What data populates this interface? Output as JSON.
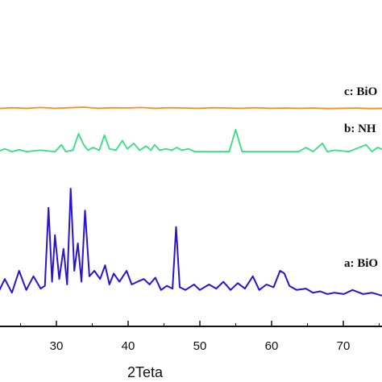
{
  "chart_data": {
    "type": "line",
    "xlabel": "2Teta",
    "ylabel": "",
    "xlim": [
      18,
      76
    ],
    "x_ticks": [
      "30",
      "40",
      "50",
      "60",
      "70"
    ],
    "grid": false,
    "series": [
      {
        "name": "a: BiO",
        "color": "#2a14d4",
        "baseline": 0,
        "x": [
          18,
          19,
          20,
          21,
          22,
          23,
          24,
          24.6,
          25.1,
          25.6,
          26,
          26.6,
          27.2,
          27.7,
          28.2,
          28.7,
          29.2,
          29.7,
          30.2,
          30.8,
          31.5,
          32.3,
          33,
          33.6,
          34.2,
          35,
          36,
          36.7,
          37.5,
          38.4,
          39.2,
          40,
          40.8,
          41.6,
          42.4,
          42.9,
          43.4,
          44.2,
          45.4,
          46.2,
          47.5,
          48.5,
          49.5,
          50.5,
          51.5,
          52.5,
          53.6,
          54.5,
          55.5,
          56.5,
          57.4,
          58,
          58.7,
          59.7,
          61,
          62,
          63,
          64,
          65,
          66.3,
          67.5,
          69,
          70.2,
          71.5,
          73,
          74.5,
          76
        ],
        "values": [
          0.15,
          0.7,
          0.2,
          1.0,
          0.3,
          0.8,
          0.35,
          0.45,
          3.3,
          0.6,
          2.3,
          0.7,
          1.8,
          0.5,
          4.0,
          1.0,
          2.0,
          0.6,
          3.2,
          0.8,
          1.0,
          0.7,
          1.2,
          0.5,
          0.9,
          0.6,
          1.0,
          0.5,
          0.6,
          0.7,
          0.5,
          0.75,
          0.3,
          0.45,
          0.35,
          2.6,
          0.4,
          0.3,
          0.5,
          0.3,
          0.5,
          0.35,
          0.6,
          0.3,
          0.55,
          0.35,
          0.8,
          0.3,
          0.5,
          0.4,
          1.0,
          0.9,
          0.45,
          0.3,
          0.35,
          0.2,
          0.25,
          0.15,
          0.2,
          0.15,
          0.3,
          0.15,
          0.2,
          0.1,
          0.15,
          0.1,
          0.15
        ]
      },
      {
        "name": "b: NH",
        "color": "#33e080",
        "baseline": 5.3,
        "x": [
          18,
          19,
          20,
          21,
          22,
          24,
          26,
          26.9,
          27.5,
          28.5,
          29.3,
          30,
          30.6,
          31.3,
          32.2,
          32.9,
          33.6,
          34.5,
          35.4,
          36.1,
          37,
          37.8,
          38.7,
          39.4,
          39.9,
          40.6,
          41.5,
          42.3,
          43,
          43.7,
          44.6,
          45.5,
          47,
          48.5,
          50.3,
          51.2,
          52.1,
          54,
          56,
          58,
          60,
          61,
          62,
          63.3,
          64,
          65,
          67,
          69.4,
          70.2,
          71,
          72.5,
          74,
          76
        ],
        "values": [
          0.05,
          0.15,
          0.05,
          0.12,
          0.05,
          0.1,
          0.05,
          0.3,
          0.05,
          0.1,
          0.7,
          0.3,
          0.1,
          0.2,
          0.1,
          0.65,
          0.15,
          0.1,
          0.45,
          0.15,
          0.35,
          0.1,
          0.25,
          0.1,
          0.3,
          0.1,
          0.15,
          0.1,
          0.2,
          0.1,
          0.15,
          0.05,
          0.05,
          0.05,
          0.05,
          0.85,
          0.05,
          0.05,
          0.05,
          0.05,
          0.05,
          0.2,
          0.05,
          0.35,
          0.05,
          0.1,
          0.05,
          0.3,
          0.05,
          0.2,
          0.05,
          0.05,
          0.05
        ]
      },
      {
        "name": "c: BiO",
        "color": "#ff8c1a",
        "baseline": 6.9,
        "x": [
          18,
          20,
          22,
          24,
          26,
          28,
          30,
          32,
          34,
          36,
          38,
          40,
          42,
          44,
          46,
          48,
          50,
          52,
          54,
          56,
          58,
          60,
          62,
          64,
          66,
          68,
          70,
          72,
          74,
          76
        ],
        "values": [
          0.02,
          0.05,
          0.03,
          0.06,
          0.03,
          0.05,
          0.07,
          0.03,
          0.05,
          0.04,
          0.06,
          0.03,
          0.05,
          0.04,
          0.03,
          0.05,
          0.04,
          0.03,
          0.05,
          0.03,
          0.04,
          0.03,
          0.04,
          0.02,
          0.03,
          0.04,
          0.02,
          0.03,
          0.02,
          0.03
        ]
      }
    ]
  }
}
